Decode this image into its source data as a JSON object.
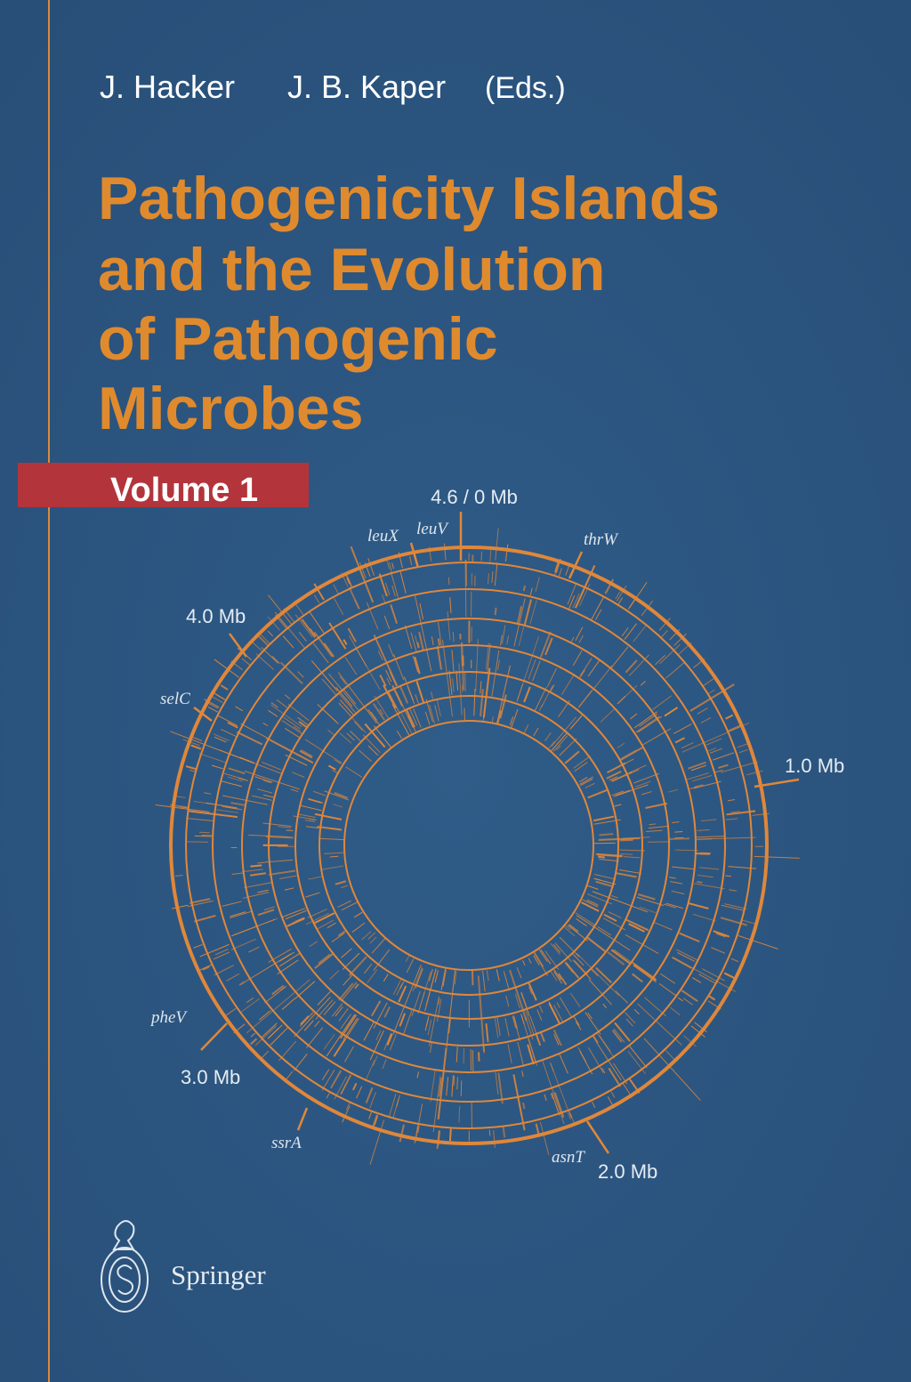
{
  "authors": [
    "J. Hacker",
    "J. B. Kaper"
  ],
  "editors_note": "(Eds.)",
  "title": [
    "Pathogenicity Islands",
    "and the Evolution",
    "of Pathogenic",
    "Microbes"
  ],
  "volume": "Volume 1",
  "genome_map": {
    "position_labels": [
      "4.6 / 0 Mb",
      "1.0 Mb",
      "2.0 Mb",
      "3.0 Mb",
      "4.0 Mb"
    ],
    "gene_labels": [
      "leuX",
      "leuV",
      "thrW",
      "selC",
      "pheV",
      "ssrA",
      "asnT"
    ]
  },
  "publisher": "Springer"
}
